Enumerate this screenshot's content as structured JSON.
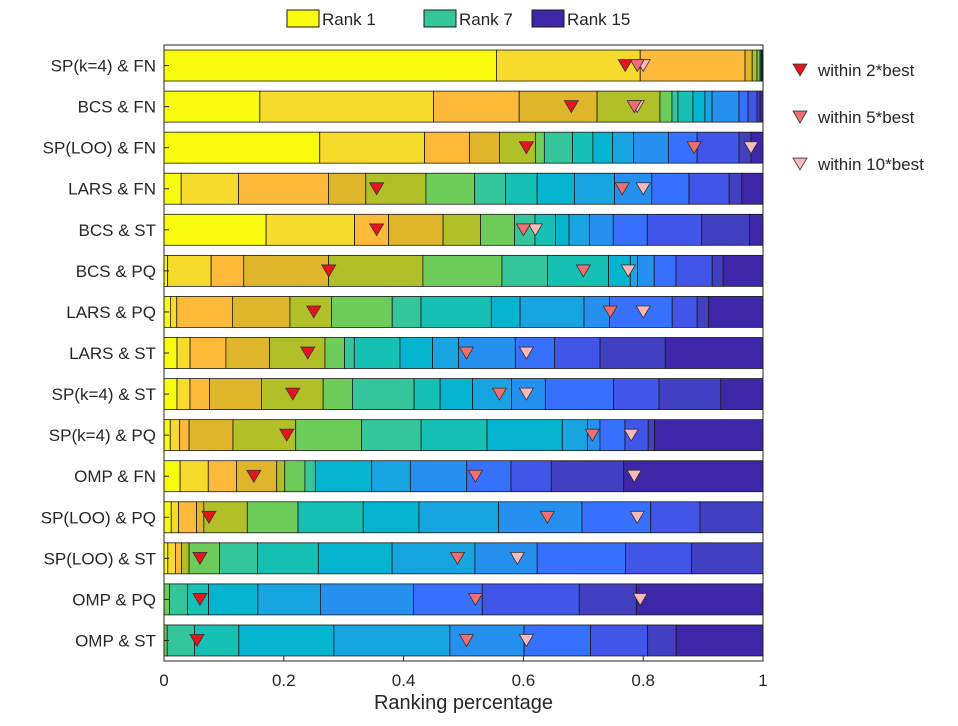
{
  "chart_data": {
    "type": "bar",
    "orientation": "horizontal",
    "stacked": true,
    "xlabel": "Ranking percentage",
    "xlim": [
      0,
      1
    ],
    "xticks": [
      0,
      0.2,
      0.4,
      0.6,
      0.8,
      1
    ],
    "xtick_labels": [
      "0",
      "0.2",
      "0.4",
      "0.6",
      "0.8",
      "1"
    ],
    "grid": false,
    "legend_top": {
      "placement": "top",
      "entries": [
        {
          "label": "Rank 1",
          "color": "#f9fb0e"
        },
        {
          "label": "Rank 7",
          "color": "#34c59a"
        },
        {
          "label": "Rank 15",
          "color": "#3d26a8"
        }
      ]
    },
    "legend_right": {
      "placement": "right",
      "entries": [
        {
          "label": "within 2*best",
          "color": "#e8141b"
        },
        {
          "label": "within 5*best",
          "color": "#f26d70"
        },
        {
          "label": "within 10*best",
          "color": "#f9b9bb"
        }
      ]
    },
    "rank_colors": [
      "#f9fb0e",
      "#f6db2c",
      "#fdb93a",
      "#dfb62b",
      "#b1bf28",
      "#6ecc5a",
      "#34c59a",
      "#16c1b4",
      "#05b5cf",
      "#18a4e1",
      "#2690f0",
      "#3670fc",
      "#4155e8",
      "#4040c0",
      "#3d26a8"
    ],
    "categories": [
      "SP(k=4) & FN",
      "BCS & FN",
      "SP(LOO) & FN",
      "LARS & FN",
      "BCS & ST",
      "BCS & PQ",
      "LARS & PQ",
      "LARS & ST",
      "SP(k=4) & ST",
      "SP(k=4) & PQ",
      "OMP & FN",
      "SP(LOO) & PQ",
      "SP(LOO) & ST",
      "OMP & PQ",
      "OMP & ST"
    ],
    "segments": [
      [
        0.555,
        0.24,
        0.175,
        0.012,
        0.008,
        0.005,
        0.002,
        0.001,
        0.001,
        0.001,
        0,
        0,
        0,
        0,
        0
      ],
      [
        0.16,
        0.29,
        0.143,
        0.13,
        0.105,
        0.02,
        0.01,
        0.025,
        0.02,
        0.012,
        0.045,
        0.015,
        0.015,
        0.005,
        0.005
      ],
      [
        0.26,
        0.175,
        0.075,
        0.05,
        0.06,
        0.015,
        0.047,
        0.034,
        0.033,
        0.035,
        0.058,
        0.048,
        0.07,
        0.02,
        0.02
      ],
      [
        0.03,
        0.1,
        0.157,
        0.065,
        0.105,
        0.085,
        0.054,
        0.055,
        0.065,
        0.07,
        0.065,
        0.065,
        0.07,
        0.022,
        0.037
      ],
      [
        0.15,
        0.13,
        0.05,
        0.08,
        0.055,
        0.05,
        0.03,
        0.03,
        0.02,
        0.03,
        0.035,
        0.05,
        0.08,
        0.07,
        0.02
      ],
      [
        0.005,
        0.06,
        0.045,
        0.117,
        0.13,
        0.109,
        0.063,
        0.084,
        0.03,
        0.01,
        0.023,
        0.03,
        0.05,
        0.015,
        0.055
      ],
      [
        0.01,
        0.01,
        0.087,
        0.09,
        0.065,
        0.095,
        0.045,
        0.11,
        0.045,
        0.1,
        0.04,
        0.098,
        0.039,
        0.018,
        0.085
      ],
      [
        0.02,
        0.02,
        0.055,
        0.067,
        0.085,
        0.03,
        0.015,
        0.07,
        0.05,
        0.04,
        0.087,
        0.06,
        0.07,
        0.1,
        0.15
      ],
      [
        0.02,
        0.02,
        0.03,
        0.08,
        0.095,
        0.045,
        0.095,
        0.04,
        0.05,
        0.06,
        0.052,
        0.105,
        0.07,
        0.095,
        0.065
      ],
      [
        0.01,
        0.015,
        0.015,
        0.07,
        0.1,
        0.105,
        0.095,
        0.105,
        0.12,
        0.04,
        0.02,
        0.04,
        0.037,
        0.01,
        0.173
      ],
      [
        0.02,
        0.035,
        0.035,
        0.05,
        0.01,
        0.025,
        0.013,
        0.0,
        0.07,
        0.048,
        0.07,
        0.055,
        0.05,
        0.09,
        0.173
      ],
      [
        0.01,
        0.01,
        0.025,
        0.01,
        0.06,
        0.07,
        0.0,
        0.09,
        0.077,
        0.11,
        0.115,
        0.095,
        0.068,
        0.087,
        0.0
      ],
      [
        0.005,
        0.01,
        0.008,
        0.0,
        0.01,
        0.04,
        0.05,
        0.08,
        0.097,
        0.109,
        0.082,
        0.116,
        0.087,
        0.094,
        0.0
      ],
      [
        0.0,
        0.0,
        0.0,
        0.0,
        0.0,
        0.007,
        0.023,
        0.027,
        0.063,
        0.08,
        0.119,
        0.088,
        0.124,
        0.073,
        0.162
      ],
      [
        0.0,
        0.0,
        0.0,
        0.0,
        0.0,
        0.005,
        0.043,
        0.07,
        0.15,
        0.183,
        0.117,
        0.105,
        0.09,
        0.045,
        0.137
      ]
    ],
    "markers": [
      [
        0.77,
        0.79,
        0.8
      ],
      [
        0.68,
        0.785,
        0.79
      ],
      [
        0.605,
        0.885,
        0.98
      ],
      [
        0.355,
        0.765,
        0.8
      ],
      [
        0.355,
        0.6,
        0.62
      ],
      [
        0.275,
        0.7,
        0.775
      ],
      [
        0.25,
        0.745,
        0.8
      ],
      [
        0.24,
        0.505,
        0.605
      ],
      [
        0.215,
        0.56,
        0.605
      ],
      [
        0.205,
        0.715,
        0.78
      ],
      [
        0.15,
        0.52,
        0.785
      ],
      [
        0.075,
        0.64,
        0.79
      ],
      [
        0.06,
        0.49,
        0.59
      ],
      [
        0.06,
        0.52,
        0.795
      ],
      [
        0.055,
        0.505,
        0.605
      ]
    ]
  }
}
